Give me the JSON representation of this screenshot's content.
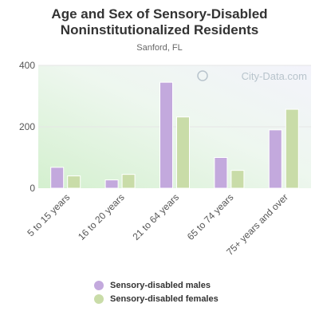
{
  "title_line1": "Age and Sex of Sensory-Disabled",
  "title_line2": "Noninstitutionalized Residents",
  "subtitle": "Sanford, FL",
  "watermark": "City-Data.com",
  "colors": {
    "males": "#c3a9dd",
    "females": "#c9dca8",
    "grid": "#dddddd",
    "axis_text": "#555555"
  },
  "chart_data": {
    "type": "bar",
    "categories": [
      "5 to 15 years",
      "16 to 20 years",
      "21 to 64 years",
      "65 to 74 years",
      "75+ years and over"
    ],
    "series": [
      {
        "name": "Sensory-disabled males",
        "values": [
          68,
          27,
          345,
          100,
          190
        ]
      },
      {
        "name": "Sensory-disabled females",
        "values": [
          40,
          45,
          232,
          58,
          257
        ]
      }
    ],
    "yticks": [
      0,
      200,
      400
    ],
    "ylim": [
      0,
      400
    ],
    "grid": true,
    "legend_position": "bottom"
  }
}
